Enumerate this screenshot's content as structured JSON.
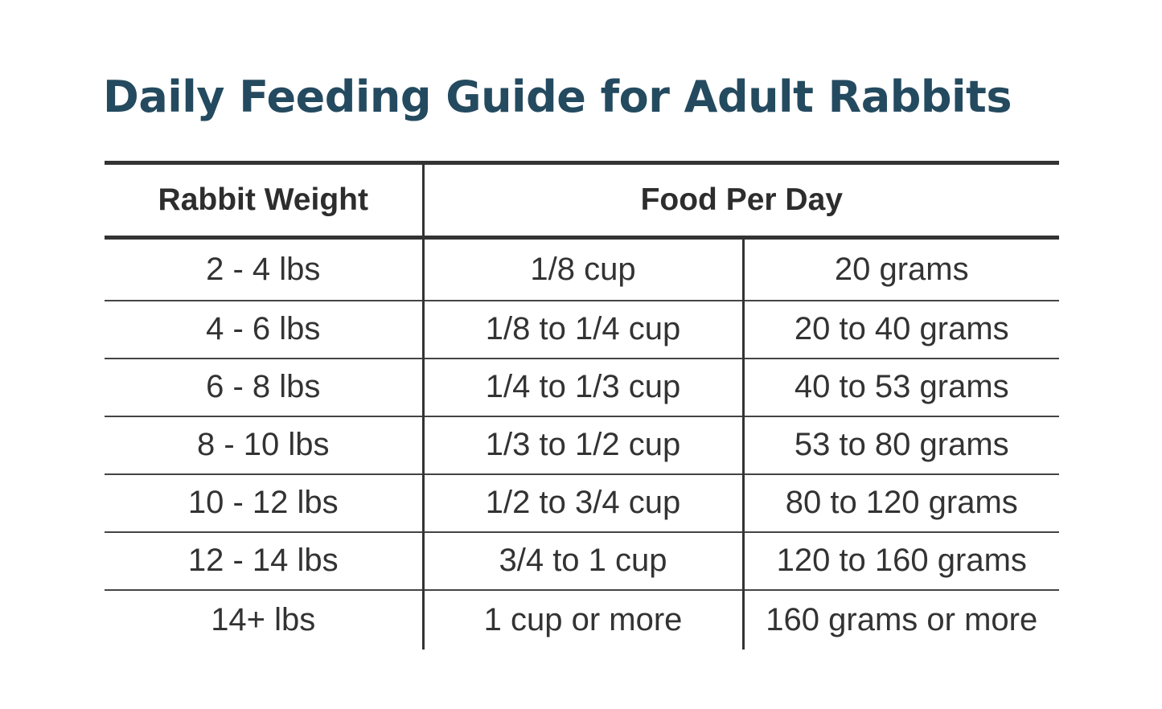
{
  "title": "Daily Feeding Guide for Adult Rabbits",
  "table": {
    "headers": {
      "weight": "Rabbit Weight",
      "food": "Food Per Day"
    },
    "rows": [
      {
        "weight": "2 - 4 lbs",
        "cups": "1/8 cup",
        "grams": "20 grams"
      },
      {
        "weight": "4 - 6 lbs",
        "cups": "1/8 to 1/4 cup",
        "grams": "20 to 40 grams"
      },
      {
        "weight": "6 - 8 lbs",
        "cups": "1/4 to 1/3 cup",
        "grams": "40 to 53 grams"
      },
      {
        "weight": "8 - 10 lbs",
        "cups": "1/3 to 1/2 cup",
        "grams": "53 to 80 grams"
      },
      {
        "weight": "10 - 12 lbs",
        "cups": "1/2 to 3/4 cup",
        "grams": "80 to 120 grams"
      },
      {
        "weight": "12 - 14 lbs",
        "cups": "3/4 to 1 cup",
        "grams": "120 to 160 grams"
      },
      {
        "weight": "14+ lbs",
        "cups": "1 cup or more",
        "grams": "160 grams or more"
      }
    ]
  },
  "colors": {
    "title": "#244a5f",
    "text": "#333333",
    "rule": "#333333"
  }
}
